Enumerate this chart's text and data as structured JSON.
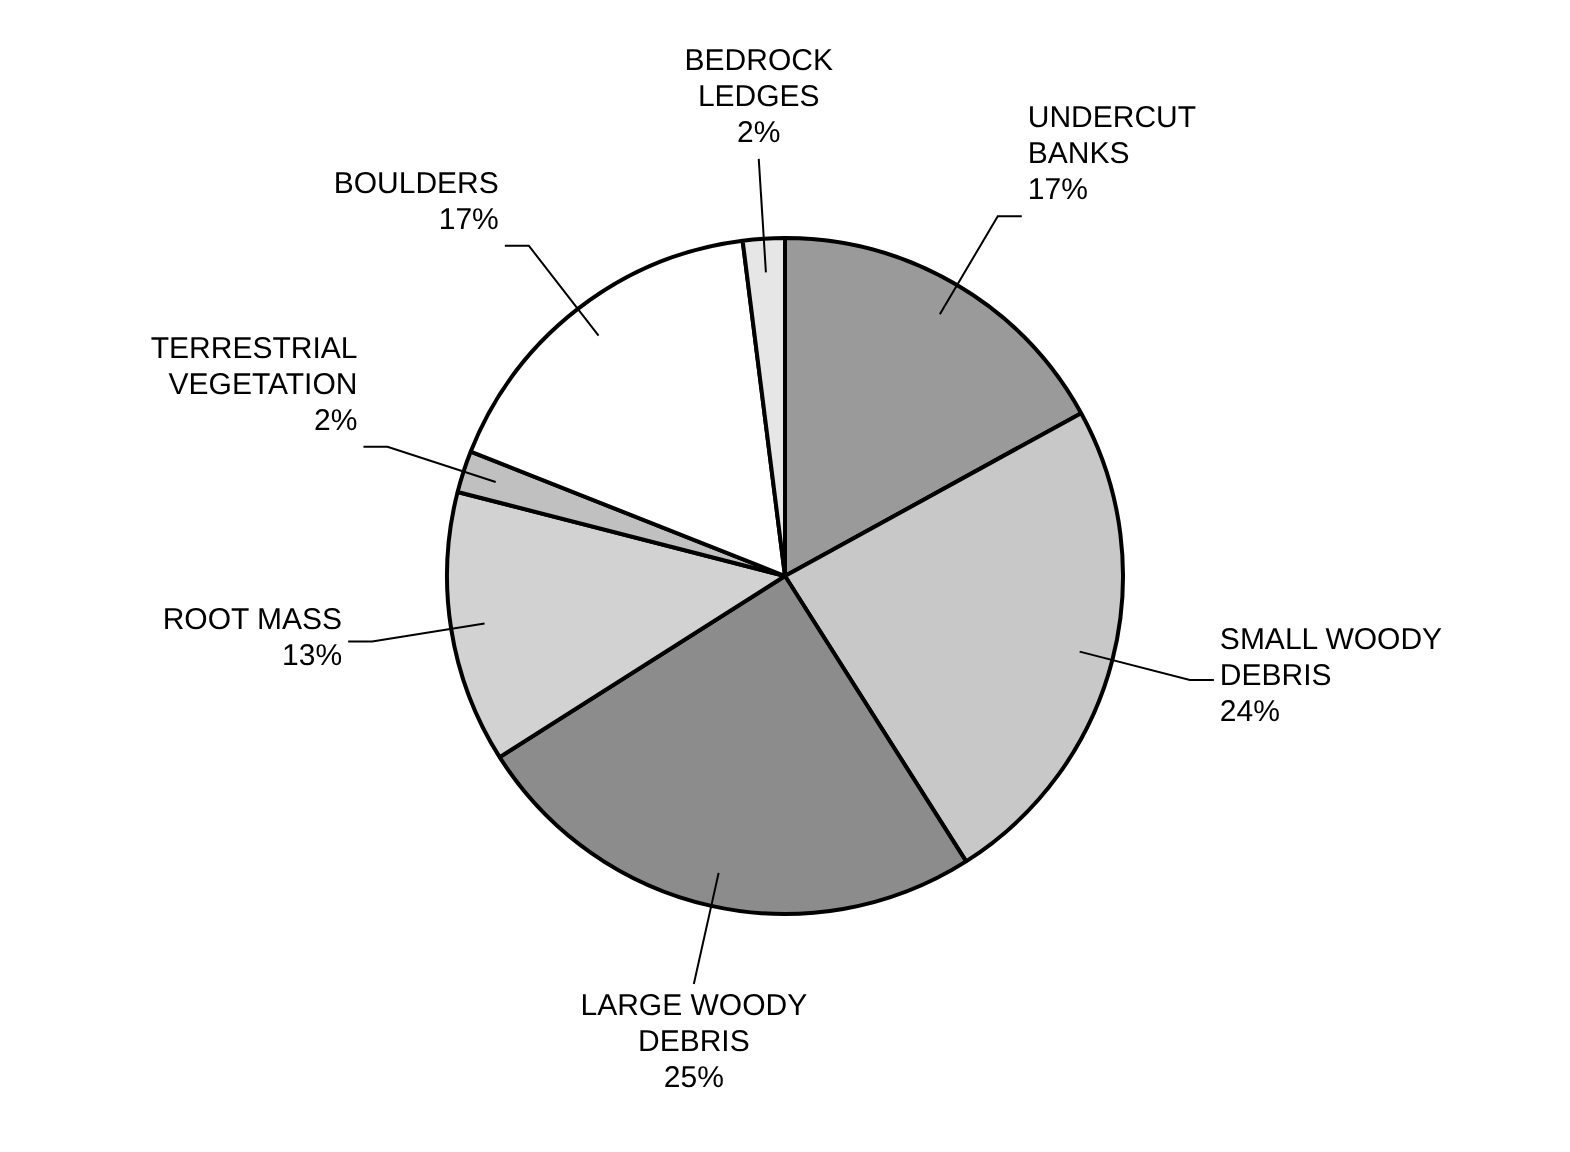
{
  "chart_data": {
    "type": "pie",
    "categories": [
      "UNDERCUT BANKS",
      "SMALL WOODY DEBRIS",
      "LARGE WOODY DEBRIS",
      "ROOT MASS",
      "TERRESTRIAL VEGETATION",
      "BOULDERS",
      "BEDROCK LEDGES"
    ],
    "values": [
      17,
      24,
      25,
      13,
      2,
      17,
      2
    ],
    "value_labels": [
      "17%",
      "24%",
      "25%",
      "13%",
      "2%",
      "17%",
      "2%"
    ],
    "colors": [
      "#9a9a9a",
      "#c8c8c8",
      "#8c8c8c",
      "#d2d2d2",
      "#c0c0c0",
      "#ffffff",
      "#e6e6e6"
    ],
    "legend": false
  }
}
